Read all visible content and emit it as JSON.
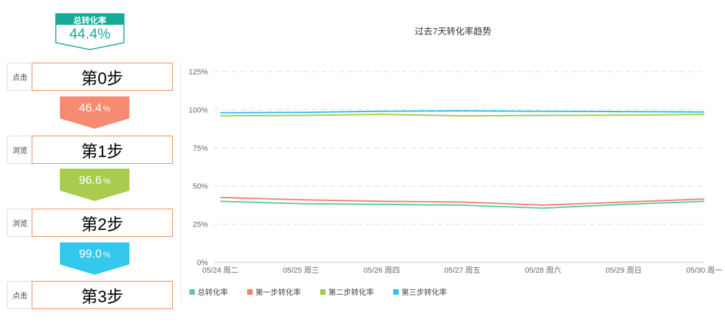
{
  "funnel": {
    "total": {
      "label": "总转化率",
      "value": "44.4%",
      "color": "#18a999"
    },
    "steps": [
      {
        "action": "点击",
        "name": "第0步"
      },
      {
        "action": "浏览",
        "name": "第1步"
      },
      {
        "action": "浏览",
        "name": "第2步"
      },
      {
        "action": "点击",
        "name": "第3步"
      }
    ],
    "rates": [
      {
        "value": "46.4",
        "unit": "%",
        "color": "#f68b72"
      },
      {
        "value": "96.6",
        "unit": "%",
        "color": "#a9cc4e"
      },
      {
        "value": "99.0",
        "unit": "%",
        "color": "#34c8ef"
      }
    ]
  },
  "chart_data": {
    "type": "line",
    "title": "过去7天转化率趋势",
    "x": [
      "05/24 周二",
      "05/25 周三",
      "05/26 周四",
      "05/27 周五",
      "05/28 周六",
      "05/29 周日",
      "05/30 周一"
    ],
    "y_ticks": [
      "0%",
      "25%",
      "50%",
      "75%",
      "100%",
      "125%"
    ],
    "ylim": [
      0,
      125
    ],
    "grid": true,
    "legend_position": "bottom",
    "series": [
      {
        "name": "总转化率",
        "color": "#5ec9a1",
        "values": [
          40,
          38.5,
          38,
          37.5,
          35.5,
          38,
          40
        ]
      },
      {
        "name": "第一步转化率",
        "color": "#f0826b",
        "values": [
          42.5,
          41,
          40,
          39.5,
          37.5,
          39.5,
          41.5
        ]
      },
      {
        "name": "第二步转化率",
        "color": "#a3cb4b",
        "values": [
          96,
          96.3,
          97,
          96,
          96.3,
          96.5,
          97
        ]
      },
      {
        "name": "第三步转化率",
        "color": "#2ec0eb",
        "values": [
          98,
          98.3,
          99,
          99.3,
          99,
          98.8,
          98.5
        ]
      }
    ]
  }
}
